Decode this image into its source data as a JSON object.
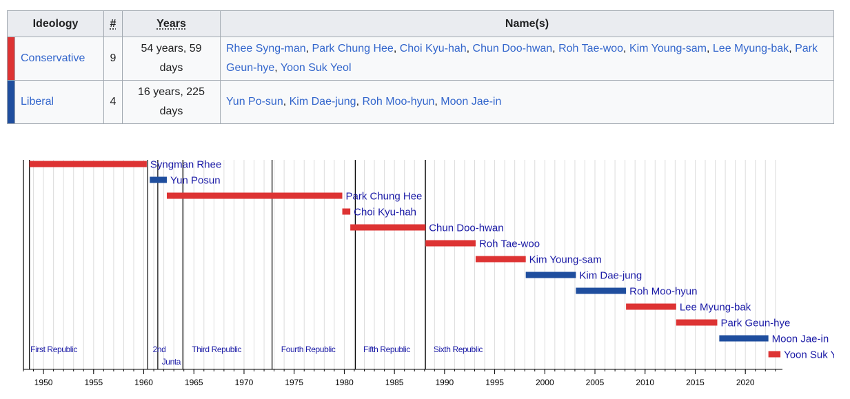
{
  "table": {
    "headers": {
      "ideology": "Ideology",
      "count": "#",
      "years": "Years",
      "names": "Name(s)"
    },
    "rows": [
      {
        "ideology": "Conservative",
        "count": "9",
        "years": "54 years, 59 days",
        "color": "#dd3333",
        "names": [
          "Rhee Syng-man",
          "Park Chung Hee",
          "Choi Kyu-hah",
          "Chun Doo-hwan",
          "Roh Tae-woo",
          "Kim Young-sam",
          "Lee Myung-bak",
          "Park Geun-hye",
          "Yoon Suk Yeol"
        ]
      },
      {
        "ideology": "Liberal",
        "count": "4",
        "years": "16 years, 225 days",
        "color": "#1f4e9e",
        "names": [
          "Yun Po-sun",
          "Kim Dae-jung",
          "Roh Moo-hyun",
          "Moon Jae-in"
        ]
      }
    ]
  },
  "chart_data": {
    "type": "timeline",
    "xlim": [
      1948,
      2023.7
    ],
    "ticks": [
      1950,
      1955,
      1960,
      1965,
      1970,
      1975,
      1980,
      1985,
      1990,
      1995,
      2000,
      2005,
      2010,
      2015,
      2020
    ],
    "grid": true,
    "colors": {
      "conservative": "#dd3333",
      "liberal": "#1f4e9e",
      "label": "#1a1aa6"
    },
    "bars": [
      {
        "name": "Syngman Rhee",
        "start": 1948.6,
        "end": 1960.3,
        "ideology": "conservative"
      },
      {
        "name": "Yun Posun",
        "start": 1960.6,
        "end": 1962.3,
        "ideology": "liberal"
      },
      {
        "name": "Park Chung Hee",
        "start": 1962.3,
        "end": 1979.8,
        "ideology": "conservative"
      },
      {
        "name": "Choi Kyu-hah",
        "start": 1979.8,
        "end": 1980.6,
        "ideology": "conservative"
      },
      {
        "name": "Chun Doo-hwan",
        "start": 1980.6,
        "end": 1988.1,
        "ideology": "conservative"
      },
      {
        "name": "Roh Tae-woo",
        "start": 1988.1,
        "end": 1993.1,
        "ideology": "conservative"
      },
      {
        "name": "Kim Young-sam",
        "start": 1993.1,
        "end": 1998.1,
        "ideology": "conservative"
      },
      {
        "name": "Kim Dae-jung",
        "start": 1998.1,
        "end": 2003.1,
        "ideology": "liberal"
      },
      {
        "name": "Roh Moo-hyun",
        "start": 2003.1,
        "end": 2008.1,
        "ideology": "liberal"
      },
      {
        "name": "Lee Myung-bak",
        "start": 2008.1,
        "end": 2013.1,
        "ideology": "conservative"
      },
      {
        "name": "Park Geun-hye",
        "start": 2013.1,
        "end": 2017.2,
        "ideology": "conservative"
      },
      {
        "name": "Moon Jae-in",
        "start": 2017.4,
        "end": 2022.3,
        "ideology": "liberal"
      },
      {
        "name": "Yoon Suk Yeol",
        "start": 2022.3,
        "end": 2023.5,
        "ideology": "conservative"
      }
    ],
    "dividers": [
      1948.0,
      1948.6,
      1960.4,
      1961.4,
      1963.9,
      1972.8,
      1981.1,
      1988.1
    ],
    "eras": [
      {
        "label": "First Republic",
        "x": 1948.7,
        "line": 0
      },
      {
        "label": "2nd",
        "x": 1960.9,
        "line": 0
      },
      {
        "label": "Junta",
        "x": 1961.8,
        "line": 1
      },
      {
        "label": "Third Republic",
        "x": 1964.8,
        "line": 0
      },
      {
        "label": "Fourth Republic",
        "x": 1973.7,
        "line": 0
      },
      {
        "label": "Fifth Republic",
        "x": 1981.9,
        "line": 0
      },
      {
        "label": "Sixth Republic",
        "x": 1988.9,
        "line": 0
      }
    ]
  }
}
